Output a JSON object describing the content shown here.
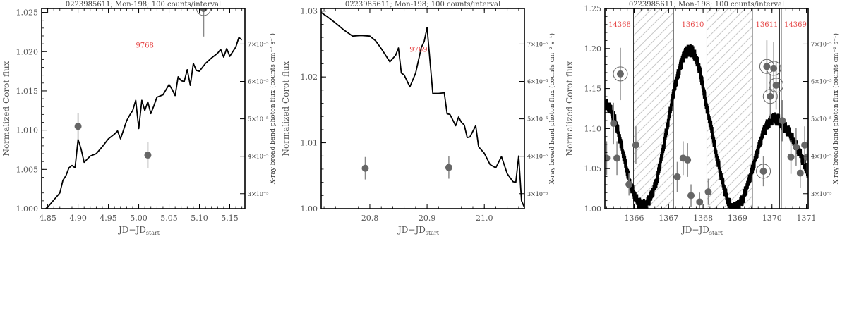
{
  "chart_data": [
    {
      "type": "line",
      "title": "0223985611; Mon-198; 100 counts/interval",
      "xlabel": "JD−JD",
      "xlabel_sub": "start",
      "ylabel": "Normalized Corot flux",
      "y2label": "X-ray broad band photon flux (counts cm⁻² s⁻¹)",
      "xlim": [
        4.84,
        5.175
      ],
      "ylim": [
        1.0,
        1.0255
      ],
      "y2lim": [
        2.6e-05,
        7.95e-05
      ],
      "xticks": [
        4.85,
        4.9,
        4.95,
        5.0,
        5.05,
        5.1,
        5.15
      ],
      "xtick_labels": [
        "4.85",
        "4.90",
        "4.95",
        "5.00",
        "5.05",
        "5.10",
        "5.15"
      ],
      "yticks": [
        1.0,
        1.005,
        1.01,
        1.015,
        1.02,
        1.025
      ],
      "ytick_labels": [
        "1.000",
        "1.005",
        "1.010",
        "1.015",
        "1.020",
        "1.025"
      ],
      "y2ticks": [
        3e-05,
        4e-05,
        5e-05,
        6e-05,
        7e-05
      ],
      "y2tick_labels": [
        "3×10⁻⁵",
        "4×10⁻⁵",
        "5×10⁻⁵",
        "6×10⁻⁵",
        "7×10⁻⁵"
      ],
      "obs_labels": [
        {
          "text": "9768",
          "x": 5.01,
          "y": 1.0205
        }
      ],
      "shaded": [],
      "vlines": [],
      "series": [
        {
          "kind": "line",
          "x": [
            4.84,
            4.845,
            4.85,
            4.86,
            4.87,
            4.875,
            4.88,
            4.885,
            4.89,
            4.895,
            4.9,
            4.905,
            4.91,
            4.92,
            4.93,
            4.94,
            4.95,
            4.96,
            4.965,
            4.97,
            4.98,
            4.985,
            4.99,
            4.995,
            5.0,
            5.005,
            5.01,
            5.015,
            5.02,
            5.025,
            5.03,
            5.04,
            5.05,
            5.055,
            5.06,
            5.065,
            5.07,
            5.075,
            5.08,
            5.085,
            5.09,
            5.095,
            5.1,
            5.11,
            5.12,
            5.13,
            5.135,
            5.14,
            5.145,
            5.15,
            5.16,
            5.165,
            5.17
          ],
          "y": [
            1.0,
            0.9999,
            1.0002,
            1.0011,
            1.002,
            1.0036,
            1.0042,
            1.0052,
            1.0055,
            1.0052,
            1.0088,
            1.0076,
            1.0059,
            1.0067,
            1.007,
            1.0079,
            1.0089,
            1.0095,
            1.0099,
            1.0089,
            1.0112,
            1.0119,
            1.0125,
            1.0138,
            1.0102,
            1.0138,
            1.0125,
            1.0136,
            1.0121,
            1.0131,
            1.0142,
            1.0145,
            1.0158,
            1.0152,
            1.0144,
            1.0168,
            1.0163,
            1.0162,
            1.0177,
            1.0157,
            1.0185,
            1.0176,
            1.0175,
            1.0185,
            1.0192,
            1.0198,
            1.0203,
            1.0193,
            1.0204,
            1.0194,
            1.0206,
            1.0218,
            1.0215
          ]
        },
        {
          "kind": "points",
          "x": [
            4.9,
            5.015,
            5.107
          ],
          "y2": [
            4.8e-05,
            4.03e-05,
            7.95e-05
          ],
          "err_lo": [
            3.5e-06,
            3.5e-06,
            7.5e-06
          ],
          "err_hi": [
            3.5e-06,
            3.5e-06,
            7.5e-06
          ],
          "circled": [
            false,
            false,
            true
          ]
        }
      ]
    },
    {
      "type": "line",
      "title": "0223985611; Mon-198; 100 counts/interval",
      "xlabel": "JD−JD",
      "xlabel_sub": "start",
      "ylabel": "Normalized Corot flux",
      "y2label": "X-ray broad band photon flux (counts cm⁻² s⁻¹)",
      "xlim": [
        20.715,
        21.07
      ],
      "ylim": [
        1.0,
        1.0304
      ],
      "y2lim": [
        2.6e-05,
        7.95e-05
      ],
      "xticks": [
        20.8,
        20.9,
        21.0
      ],
      "xtick_labels": [
        "20.8",
        "20.9",
        "21.0"
      ],
      "yticks": [
        1.0,
        1.01,
        1.02,
        1.03
      ],
      "ytick_labels": [
        "1.00",
        "1.01",
        "1.02",
        "1.03"
      ],
      "y2ticks": [
        3e-05,
        4e-05,
        5e-05,
        6e-05,
        7e-05
      ],
      "y2tick_labels": [
        "3×10⁻⁵",
        "4×10⁻⁵",
        "5×10⁻⁵",
        "6×10⁻⁵",
        "7×10⁻⁵"
      ],
      "obs_labels": [
        {
          "text": "9769",
          "x": 20.885,
          "y": 1.0238
        }
      ],
      "shaded": [],
      "vlines": [],
      "series": [
        {
          "kind": "line",
          "x": [
            20.715,
            20.725,
            20.74,
            20.755,
            20.77,
            20.785,
            20.8,
            20.81,
            20.82,
            20.835,
            20.845,
            20.85,
            20.855,
            20.86,
            20.87,
            20.88,
            20.89,
            20.895,
            20.9,
            20.91,
            20.92,
            20.93,
            20.935,
            20.94,
            20.95,
            20.955,
            20.96,
            20.965,
            20.97,
            20.975,
            20.985,
            20.99,
            21.0,
            21.01,
            21.02,
            21.03,
            21.04,
            21.05,
            21.055,
            21.06,
            21.065,
            21.07
          ],
          "y": [
            1.0298,
            1.0292,
            1.0282,
            1.0271,
            1.0262,
            1.0263,
            1.0262,
            1.0255,
            1.0243,
            1.0223,
            1.0233,
            1.0244,
            1.0206,
            1.0203,
            1.0185,
            1.0206,
            1.0245,
            1.0254,
            1.0275,
            1.0175,
            1.0175,
            1.0176,
            1.0144,
            1.0143,
            1.0126,
            1.0139,
            1.0131,
            1.0127,
            1.0108,
            1.0109,
            1.0126,
            1.0094,
            1.0084,
            1.0067,
            1.0062,
            1.0079,
            1.0053,
            1.0041,
            1.004,
            1.008,
            1.0012,
            1.0002
          ]
        },
        {
          "kind": "points",
          "x": [
            20.792,
            20.938
          ],
          "y2": [
            3.68e-05,
            3.7e-05
          ],
          "err_lo": [
            3e-06,
            3e-06
          ],
          "err_hi": [
            3e-06,
            3e-06
          ],
          "circled": [
            false,
            false
          ]
        }
      ]
    },
    {
      "type": "line",
      "title": "0223985611; Mon-198; 100 counts/interval",
      "xlabel": "JD−JD",
      "xlabel_sub": "start",
      "ylabel": "Normalized Corot flux",
      "y2label": "X-ray broad band photon flux (counts cm⁻² s⁻¹)",
      "xlim": [
        1365.15,
        1371.05
      ],
      "ylim": [
        1.0,
        1.25
      ],
      "y2lim": [
        2.6e-05,
        7.95e-05
      ],
      "xticks": [
        1366,
        1367,
        1368,
        1369,
        1370,
        1371
      ],
      "xtick_labels": [
        "1366",
        "1367",
        "1368",
        "1369",
        "1370",
        "1371"
      ],
      "yticks": [
        1.0,
        1.05,
        1.1,
        1.15,
        1.2,
        1.25
      ],
      "ytick_labels": [
        "1.00",
        "1.05",
        "1.10",
        "1.15",
        "1.20",
        "1.25"
      ],
      "y2ticks": [
        3e-05,
        4e-05,
        5e-05,
        6e-05,
        7e-05
      ],
      "y2tick_labels": [
        "3×10⁻⁵",
        "4×10⁻⁵",
        "5×10⁻⁵",
        "6×10⁻⁵",
        "7×10⁻⁵"
      ],
      "obs_labels": [
        {
          "text": "14368",
          "x": 1365.58,
          "y": 1.227
        },
        {
          "text": "13610",
          "x": 1367.7,
          "y": 1.227
        },
        {
          "text": "13611",
          "x": 1369.85,
          "y": 1.227
        },
        {
          "text": "14369",
          "x": 1370.68,
          "y": 1.227
        }
      ],
      "shaded": [
        [
          1365.98,
          1367.14
        ],
        [
          1368.11,
          1369.43
        ]
      ],
      "vlines": [
        1365.98,
        1367.14,
        1368.11,
        1369.43,
        1370.22,
        1370.27
      ],
      "series": [
        {
          "kind": "line",
          "x": [
            1365.15,
            1365.3,
            1365.45,
            1365.6,
            1365.75,
            1365.9,
            1366.05,
            1366.2,
            1366.35,
            1366.5,
            1366.65,
            1366.8,
            1366.95,
            1367.1,
            1367.2,
            1367.3,
            1367.4,
            1367.5,
            1367.6,
            1367.7,
            1367.8,
            1367.9,
            1368.0,
            1368.1,
            1368.25,
            1368.4,
            1368.55,
            1368.7,
            1368.85,
            1369.0,
            1369.15,
            1369.3,
            1369.45,
            1369.6,
            1369.75,
            1369.9,
            1370.05,
            1370.2,
            1370.35,
            1370.5,
            1370.65,
            1370.8,
            1370.95,
            1371.05
          ],
          "y": [
            1.132,
            1.125,
            1.11,
            1.085,
            1.055,
            1.03,
            1.012,
            1.004,
            1.005,
            1.016,
            1.035,
            1.065,
            1.1,
            1.135,
            1.155,
            1.172,
            1.186,
            1.195,
            1.198,
            1.196,
            1.188,
            1.173,
            1.152,
            1.128,
            1.098,
            1.065,
            1.035,
            1.012,
            1.0,
            1.002,
            1.012,
            1.03,
            1.052,
            1.075,
            1.095,
            1.108,
            1.113,
            1.11,
            1.103,
            1.095,
            1.083,
            1.07,
            1.055,
            1.045
          ]
        },
        {
          "kind": "points",
          "x": [
            1365.2,
            1365.4,
            1365.5,
            1365.6,
            1365.85,
            1366.05,
            1367.25,
            1367.42,
            1367.55,
            1367.65,
            1367.9,
            1368.15,
            1369.75,
            1369.85,
            1369.95,
            1370.05,
            1370.12,
            1370.3,
            1370.55,
            1370.7,
            1370.82,
            1370.95,
            1371.02
          ],
          "y2": [
            3.95e-05,
            4.88e-05,
            3.95e-05,
            6.2e-05,
            3.25e-05,
            4.3e-05,
            3.45e-05,
            3.95e-05,
            3.9e-05,
            2.95e-05,
            2.78e-05,
            3.05e-05,
            3.6e-05,
            6.4e-05,
            5.6e-05,
            6.35e-05,
            5.9e-05,
            4.95e-05,
            3.98e-05,
            4.25e-05,
            3.55e-05,
            4.3e-05,
            3.98e-05
          ],
          "err_lo": [
            4.5e-06,
            5.5e-06,
            4.5e-06,
            7e-06,
            3e-06,
            5e-06,
            4e-06,
            4.5e-06,
            4.5e-06,
            3e-06,
            2.5e-06,
            3.5e-06,
            4e-06,
            7e-06,
            6e-06,
            7e-06,
            6.5e-06,
            5.5e-06,
            4.5e-06,
            5e-06,
            4e-06,
            5e-06,
            4.5e-06
          ],
          "err_hi": [
            4.5e-06,
            5.5e-06,
            4.5e-06,
            7e-06,
            3e-06,
            5e-06,
            4e-06,
            4.5e-06,
            4.5e-06,
            3e-06,
            2.5e-06,
            3.5e-06,
            4e-06,
            7e-06,
            6e-06,
            7e-06,
            6.5e-06,
            5.5e-06,
            4.5e-06,
            5e-06,
            4e-06,
            5e-06,
            4.5e-06
          ],
          "circled": [
            false,
            false,
            false,
            true,
            false,
            false,
            false,
            false,
            false,
            false,
            false,
            false,
            true,
            true,
            true,
            true,
            true,
            false,
            false,
            false,
            false,
            false,
            false
          ]
        }
      ]
    }
  ]
}
